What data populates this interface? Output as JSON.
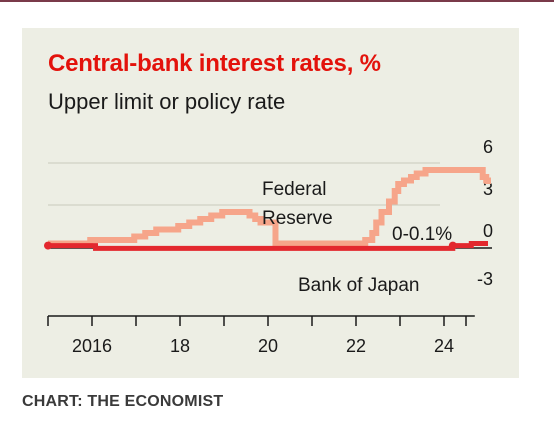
{
  "title": "Central-bank interest rates, %",
  "subtitle": "Upper limit or policy rate",
  "credit": "CHART: THE ECONOMIST",
  "colors": {
    "fed": "#f6a58a",
    "boj": "#e3282e",
    "title": "#e3120b",
    "background": "#edeee4"
  },
  "chart_data": {
    "type": "line",
    "title": "Central-bank interest rates, %",
    "subtitle": "Upper limit or policy rate",
    "xlabel": "",
    "ylabel": "",
    "xlim": [
      2015.0,
      2025.0
    ],
    "ylim": [
      -3,
      6
    ],
    "x_ticks": [
      2016,
      2018,
      2020,
      2022,
      2024
    ],
    "x_tick_labels": [
      "2016",
      "18",
      "20",
      "22",
      "24"
    ],
    "y_ticks": [
      6,
      3,
      0,
      -3
    ],
    "y_tick_labels": [
      "6",
      "3",
      "0",
      "-3"
    ],
    "grid": true,
    "annotations": {
      "fed_label_line1": "Federal",
      "fed_label_line2": "Reserve",
      "boj_value_label": "0-0.1%",
      "boj_label": "Bank of Japan"
    },
    "series": [
      {
        "name": "Federal Reserve",
        "step": true,
        "x": [
          2015.0,
          2015.96,
          2016.96,
          2017.21,
          2017.46,
          2017.96,
          2018.21,
          2018.46,
          2018.71,
          2018.96,
          2019.58,
          2019.71,
          2019.83,
          2020.17,
          2022.21,
          2022.37,
          2022.46,
          2022.58,
          2022.75,
          2022.88,
          2022.96,
          2023.09,
          2023.25,
          2023.38,
          2023.58,
          2024.71,
          2024.88,
          2024.96,
          2025.0
        ],
        "y": [
          0.25,
          0.5,
          0.75,
          1.0,
          1.25,
          1.5,
          1.75,
          2.0,
          2.25,
          2.5,
          2.25,
          2.0,
          1.75,
          0.25,
          0.5,
          1.0,
          1.75,
          2.5,
          3.25,
          4.0,
          4.5,
          4.75,
          5.0,
          5.25,
          5.5,
          5.5,
          5.0,
          4.75,
          4.5
        ]
      },
      {
        "name": "Bank of Japan",
        "step": true,
        "x": [
          2015.0,
          2016.08,
          2024.2,
          2024.62,
          2025.0
        ],
        "y": [
          0.1,
          -0.1,
          0.1,
          0.25,
          0.25
        ]
      }
    ]
  }
}
